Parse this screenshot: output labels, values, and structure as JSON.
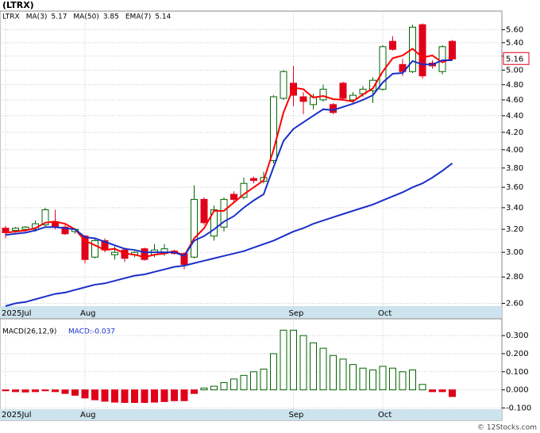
{
  "chart_data": [
    {
      "type": "candlestick",
      "title": "(LTRX)",
      "symbol": "LTRX",
      "log_scale": true,
      "grid": true,
      "categories": [
        "2025Jul",
        null,
        null,
        null,
        null,
        null,
        null,
        null,
        "Aug",
        null,
        null,
        null,
        null,
        null,
        null,
        null,
        null,
        null,
        null,
        null,
        null,
        null,
        null,
        null,
        null,
        null,
        null,
        null,
        null,
        "Sep",
        null,
        null,
        null,
        null,
        null,
        null,
        null,
        null,
        "Oct",
        null,
        null,
        null,
        null,
        null,
        null,
        null
      ],
      "open": [
        3.21,
        3.19,
        3.2,
        3.2,
        3.24,
        3.27,
        3.22,
        3.18,
        3.14,
        2.96,
        3.1,
        2.98,
        3.02,
        2.98,
        3.03,
        2.98,
        2.99,
        3.01,
        2.99,
        2.96,
        3.48,
        3.14,
        3.22,
        3.53,
        3.5,
        3.69,
        3.66,
        3.88,
        4.62,
        4.82,
        4.64,
        4.54,
        4.6,
        4.54,
        4.82,
        4.6,
        4.68,
        4.72,
        4.74,
        5.42,
        5.08,
        4.98,
        5.68,
        5.1,
        4.98,
        5.42
      ],
      "high": [
        3.23,
        3.22,
        3.23,
        3.28,
        3.4,
        3.38,
        3.24,
        3.21,
        3.15,
        3.12,
        3.12,
        3.05,
        3.04,
        3.01,
        3.04,
        3.07,
        3.07,
        3.02,
        3.0,
        3.62,
        3.5,
        3.42,
        3.5,
        3.56,
        3.7,
        3.71,
        3.76,
        4.66,
        5.0,
        5.06,
        4.7,
        4.68,
        4.8,
        4.56,
        4.84,
        4.7,
        4.78,
        4.9,
        5.36,
        5.5,
        5.16,
        5.68,
        5.7,
        5.14,
        5.36,
        5.44
      ],
      "low": [
        3.12,
        3.17,
        3.18,
        3.18,
        3.22,
        3.2,
        3.15,
        3.16,
        2.91,
        2.95,
        3.0,
        2.94,
        2.92,
        2.96,
        2.93,
        2.96,
        2.97,
        2.98,
        2.86,
        2.95,
        3.24,
        3.1,
        3.18,
        3.46,
        3.48,
        3.64,
        3.64,
        3.85,
        4.6,
        4.52,
        4.42,
        4.48,
        4.58,
        4.42,
        4.6,
        4.56,
        4.64,
        4.56,
        4.72,
        5.28,
        4.92,
        4.96,
        4.88,
        5.02,
        4.94,
        5.14
      ],
      "close": [
        3.17,
        3.21,
        3.22,
        3.25,
        3.38,
        3.22,
        3.16,
        3.2,
        2.94,
        3.1,
        3.02,
        3.0,
        2.95,
        3.0,
        2.94,
        3.02,
        3.03,
        2.99,
        2.9,
        3.48,
        3.26,
        3.38,
        3.48,
        3.48,
        3.64,
        3.67,
        3.7,
        4.64,
        4.98,
        4.66,
        4.58,
        4.64,
        4.74,
        4.44,
        4.62,
        4.66,
        4.74,
        4.86,
        5.34,
        5.3,
        4.98,
        5.64,
        4.92,
        5.06,
        5.34,
        5.16
      ],
      "up_color": "#006400",
      "down_color": "#e0001a",
      "series": [
        {
          "name": "MA(3)",
          "legend_value": 5.17,
          "color": "#ff0000",
          "values": [
            3.17,
            3.18,
            3.19,
            3.21,
            3.26,
            3.27,
            3.25,
            3.2,
            3.1,
            3.06,
            3.02,
            3.03,
            2.99,
            2.98,
            2.96,
            2.98,
            2.99,
            3.01,
            2.97,
            3.12,
            3.21,
            3.37,
            3.37,
            3.45,
            3.53,
            3.6,
            3.67,
            4.0,
            4.44,
            4.76,
            4.74,
            4.63,
            4.65,
            4.61,
            4.6,
            4.58,
            4.67,
            4.75,
            4.98,
            5.17,
            5.21,
            5.31,
            5.18,
            5.21,
            5.11,
            5.17
          ]
        },
        {
          "name": "MA(50)",
          "legend_value": 3.85,
          "color": "#1a2fc8",
          "values": [
            2.58,
            2.6,
            2.61,
            2.63,
            2.65,
            2.67,
            2.68,
            2.7,
            2.72,
            2.74,
            2.75,
            2.77,
            2.79,
            2.81,
            2.82,
            2.84,
            2.86,
            2.88,
            2.89,
            2.91,
            2.93,
            2.95,
            2.97,
            2.99,
            3.01,
            3.04,
            3.07,
            3.1,
            3.14,
            3.18,
            3.21,
            3.25,
            3.28,
            3.31,
            3.34,
            3.37,
            3.4,
            3.43,
            3.47,
            3.51,
            3.55,
            3.6,
            3.64,
            3.7,
            3.77,
            3.85
          ]
        },
        {
          "name": "EMA(7)",
          "legend_value": 5.14,
          "color": "#1a2fc8",
          "values": [
            3.15,
            3.16,
            3.17,
            3.19,
            3.22,
            3.22,
            3.21,
            3.2,
            3.13,
            3.12,
            3.09,
            3.06,
            3.03,
            3.02,
            3.0,
            3.0,
            3.0,
            3.0,
            2.97,
            3.1,
            3.14,
            3.2,
            3.27,
            3.32,
            3.4,
            3.47,
            3.53,
            3.81,
            4.1,
            4.24,
            4.32,
            4.4,
            4.48,
            4.47,
            4.51,
            4.55,
            4.6,
            4.66,
            4.83,
            4.95,
            4.96,
            5.13,
            5.08,
            5.08,
            5.14,
            5.14
          ]
        }
      ],
      "last_value": 5.16,
      "ylim": [
        2.58,
        5.9
      ],
      "yticks": [
        {
          "value": 2.6,
          "label": "2.60"
        },
        {
          "value": 2.8,
          "label": "2.80"
        },
        {
          "value": 3,
          "label": "3.00"
        },
        {
          "value": 3.2,
          "label": "3.20"
        },
        {
          "value": 3.4,
          "label": "3.40"
        },
        {
          "value": 3.6,
          "label": "3.60"
        },
        {
          "value": 3.8,
          "label": "3.80"
        },
        {
          "value": 4,
          "label": "4.00"
        },
        {
          "value": 4.2,
          "label": "4.20"
        },
        {
          "value": 4.4,
          "label": "4.40"
        },
        {
          "value": 4.6,
          "label": "4.60"
        },
        {
          "value": 4.8,
          "label": "4.80"
        },
        {
          "value": 5,
          "label": "5.00"
        },
        {
          "value": 5.2,
          "label": "5.20"
        },
        {
          "value": 5.4,
          "label": "5.40"
        },
        {
          "value": 5.6,
          "label": "5.60"
        }
      ]
    },
    {
      "type": "bar",
      "title": "MACD(26,12,9)",
      "subtitle": "MACD:-0.037",
      "grid": true,
      "positive_color": "#006400",
      "negative_color": "#e0001a",
      "values": [
        -0.005,
        -0.01,
        -0.012,
        -0.01,
        -0.005,
        -0.01,
        -0.02,
        -0.03,
        -0.045,
        -0.055,
        -0.063,
        -0.068,
        -0.07,
        -0.07,
        -0.07,
        -0.068,
        -0.065,
        -0.06,
        -0.06,
        -0.02,
        0.01,
        0.02,
        0.04,
        0.06,
        0.08,
        0.1,
        0.115,
        0.2,
        0.33,
        0.33,
        0.3,
        0.26,
        0.23,
        0.19,
        0.17,
        0.14,
        0.12,
        0.11,
        0.13,
        0.12,
        0.1,
        0.11,
        0.03,
        -0.01,
        -0.01,
        -0.037
      ],
      "ylim": [
        -0.107,
        0.384
      ],
      "yticks": [
        {
          "value": -0.1,
          "label": "-0.100"
        },
        {
          "value": 0,
          "label": "0.000"
        },
        {
          "value": 0.1,
          "label": "0.100"
        },
        {
          "value": 0.2,
          "label": "0.200"
        },
        {
          "value": 0.3,
          "label": "0.300"
        }
      ]
    }
  ],
  "footer": "© 12Stocks.com"
}
